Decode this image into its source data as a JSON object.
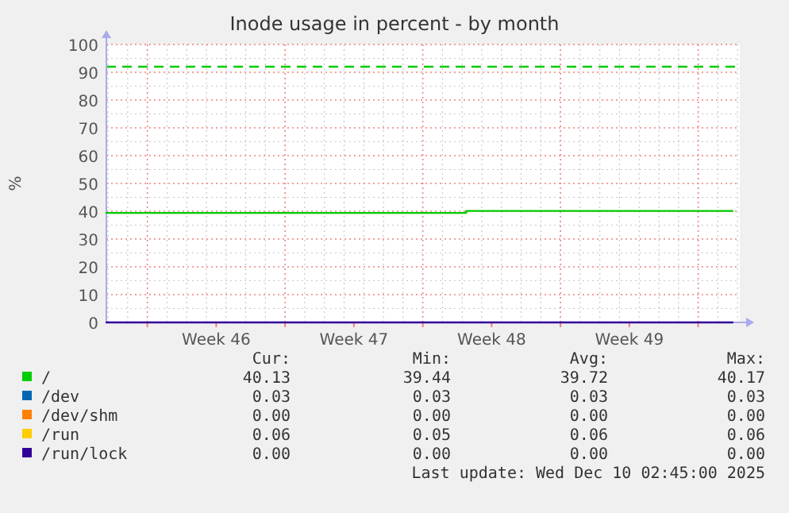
{
  "chart_data": {
    "type": "line",
    "title": "Inode usage in percent - by month",
    "ylabel": "%",
    "xlim": [
      "2025-11-07T22:00",
      "2025-12-10T02:45"
    ],
    "xticks": [
      {
        "value": "2025-11-10",
        "label": null
      },
      {
        "value": "2025-11-13T12:00",
        "label": "Week 46"
      },
      {
        "value": "2025-11-17",
        "label": null
      },
      {
        "value": "2025-11-20T12:00",
        "label": "Week 47"
      },
      {
        "value": "2025-11-24",
        "label": null
      },
      {
        "value": "2025-11-27T12:00",
        "label": "Week 48"
      },
      {
        "value": "2025-12-01",
        "label": null
      },
      {
        "value": "2025-12-04T12:00",
        "label": "Week 49"
      },
      {
        "value": "2025-12-08",
        "label": null
      }
    ],
    "ylim": [
      0,
      100
    ],
    "yticks": [
      0,
      10,
      20,
      30,
      40,
      50,
      60,
      70,
      80,
      90,
      100
    ],
    "grid": true,
    "legend": "bottom",
    "series": [
      {
        "name": "/",
        "color": "#00cc00",
        "type": "step",
        "x": [
          "2025-11-07T22:00",
          "2025-11-26T05:00",
          "2025-12-09T18:00"
        ],
        "values": [
          39.4,
          40.1,
          40.1
        ]
      },
      {
        "name": "/dev",
        "color": "#0066b3",
        "values": [
          null
        ]
      },
      {
        "name": "/dev/shm",
        "color": "#ff8000",
        "values": [
          null
        ]
      },
      {
        "name": "/run",
        "color": "#ffcc00",
        "values": [
          null
        ]
      },
      {
        "name": "/run/lock",
        "color": "#330099",
        "x": [
          "2025-11-07T22:00",
          "2025-12-09T18:00"
        ],
        "values": [
          0,
          0
        ]
      }
    ],
    "ref_lines": [
      {
        "axis": "y",
        "value": 92,
        "color": "#00cc00",
        "line_style": "dashed"
      }
    ],
    "annotations": [
      "Cur:",
      "Min:",
      "Avg:",
      "Max:",
      "40.13",
      "39.44",
      "39.72",
      "40.17",
      "0.03",
      "0.03",
      "0.03",
      "0.03",
      "0.00",
      "0.00",
      "0.00",
      "0.00",
      "0.06",
      "0.05",
      "0.06",
      "0.06",
      "0.00",
      "0.00",
      "0.00",
      "0.00",
      "Last update: Wed Dec 10 02:45:00 2025"
    ]
  }
}
